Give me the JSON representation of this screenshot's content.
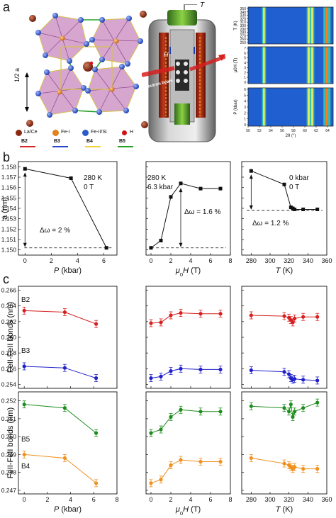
{
  "panel_labels": {
    "a": "a",
    "b": "b",
    "c": "c"
  },
  "panel_a": {
    "structure": {
      "axis_label": "1/2 a",
      "legend": [
        {
          "label": "La/Ce",
          "color": "#8b2a14"
        },
        {
          "label": "Fe-I",
          "color": "#e0831a"
        },
        {
          "label": "Fe-II/Si",
          "color": "#2a5cc8"
        },
        {
          "label": "H",
          "color": "#d0121a"
        }
      ],
      "bond_legend": [
        {
          "label": "B2",
          "color": "#d42a2a"
        },
        {
          "label": "B3",
          "color": "#2747c9"
        },
        {
          "label": "B4",
          "color": "#f0d23a"
        },
        {
          "label": "B5",
          "color": "#28a028"
        }
      ]
    },
    "apparatus": {
      "beam_label": "Neutron beam",
      "top_label": "T",
      "field_label": "H"
    },
    "heatmaps": {
      "y_labels": [
        "T (K)",
        "μ0H (T)",
        "P (kbar)"
      ],
      "y_ticks": [
        [
          "250",
          "260",
          "270",
          "280",
          "290",
          "300",
          "310",
          "320",
          "330",
          "340",
          "350"
        ],
        [
          "0",
          "1",
          "2",
          "3",
          "4",
          "5",
          "6",
          "7"
        ],
        [
          "0",
          "1",
          "2",
          "3",
          "4",
          "5",
          "6"
        ]
      ],
      "x_ticks": [
        "50",
        "52",
        "54",
        "56",
        "58",
        "60",
        "62",
        "64"
      ],
      "x_label": "2θ (°)"
    }
  },
  "chart_data": [
    {
      "type": "line",
      "panel": "b-1",
      "xlabel": "P (kbar)",
      "ylabel": "a (nm)",
      "x": [
        0,
        3.5,
        6.2
      ],
      "y": [
        1.1578,
        1.1569,
        1.1502
      ],
      "xlim": [
        -0.5,
        7
      ],
      "ylim": [
        1.1495,
        1.1585
      ],
      "xticks": [
        "0",
        "2",
        "4",
        "6"
      ],
      "yticks": [
        "1.150",
        "1.151",
        "1.152",
        "1.153",
        "1.154",
        "1.155",
        "1.156",
        "1.157",
        "1.158"
      ],
      "annotations": [
        "280 K",
        "0 T",
        "Δω = 2 %"
      ],
      "baseline": 1.1502
    },
    {
      "type": "line",
      "panel": "b-2",
      "xlabel": "μ0H (T)",
      "ylabel": "",
      "x": [
        0,
        1,
        2,
        3,
        5,
        7
      ],
      "y": [
        1.1502,
        1.1509,
        1.1551,
        1.1564,
        1.1559,
        1.1559
      ],
      "xlim": [
        -0.5,
        8
      ],
      "ylim": [
        1.1495,
        1.1585
      ],
      "xticks": [
        "0",
        "2",
        "4",
        "6",
        "8"
      ],
      "annotations": [
        "280 K",
        "6.3 kbar",
        "Δω = 1.6 %"
      ],
      "baseline": 1.1502
    },
    {
      "type": "line",
      "panel": "b-3",
      "xlabel": "T (K)",
      "ylabel": "",
      "x": [
        280,
        315,
        322,
        324,
        326,
        335,
        350
      ],
      "y": [
        1.1576,
        1.1563,
        1.1541,
        1.154,
        1.1539,
        1.1539,
        1.1539
      ],
      "xlim": [
        270,
        360
      ],
      "ylim": [
        1.1495,
        1.1585
      ],
      "xticks": [
        "280",
        "300",
        "320",
        "340",
        "360"
      ],
      "annotations": [
        "0 kbar",
        "0 T",
        "Δω = 1.2 %"
      ],
      "baseline": 1.1538
    },
    {
      "type": "line",
      "panel": "c-top-1",
      "xlabel": "",
      "ylabel": "FeII-FeII bonds (nm)",
      "ylim": [
        0.2535,
        0.2665
      ],
      "yticks": [
        "0.254",
        "0.256",
        "0.258",
        "0.260",
        "0.262",
        "0.264",
        "0.266"
      ],
      "xlim": [
        -0.5,
        8
      ],
      "series": [
        {
          "name": "B2",
          "color": "#d62020",
          "x": [
            0,
            3.5,
            6.2
          ],
          "y": [
            0.2634,
            0.2632,
            0.2617
          ]
        },
        {
          "name": "B3",
          "color": "#2020c8",
          "x": [
            0,
            3.5,
            6.2
          ],
          "y": [
            0.2563,
            0.2561,
            0.2548
          ]
        }
      ]
    },
    {
      "type": "line",
      "panel": "c-top-2",
      "xlim": [
        -0.5,
        8
      ],
      "ylim": [
        0.2535,
        0.2665
      ],
      "series": [
        {
          "name": "B2",
          "color": "#d62020",
          "x": [
            0,
            1,
            2,
            3,
            5,
            7
          ],
          "y": [
            0.2618,
            0.2619,
            0.2628,
            0.2631,
            0.263,
            0.263
          ]
        },
        {
          "name": "B3",
          "color": "#2020c8",
          "x": [
            0,
            1,
            2,
            3,
            5,
            7
          ],
          "y": [
            0.2548,
            0.255,
            0.2557,
            0.256,
            0.2559,
            0.2559
          ]
        }
      ]
    },
    {
      "type": "line",
      "panel": "c-top-3",
      "xlim": [
        270,
        360
      ],
      "ylim": [
        0.2535,
        0.2665
      ],
      "series": [
        {
          "name": "B2",
          "color": "#d62020",
          "x": [
            280,
            315,
            320,
            322,
            324,
            326,
            335,
            350
          ],
          "y": [
            0.2628,
            0.2627,
            0.2625,
            0.2622,
            0.2619,
            0.2624,
            0.2626,
            0.2626
          ]
        },
        {
          "name": "B3",
          "color": "#2020c8",
          "x": [
            280,
            315,
            320,
            322,
            324,
            326,
            335,
            350
          ],
          "y": [
            0.2558,
            0.2556,
            0.2553,
            0.2548,
            0.2546,
            0.2547,
            0.2546,
            0.2545
          ]
        }
      ]
    },
    {
      "type": "line",
      "panel": "c-bottom-1",
      "xlabel": "P (kbar)",
      "ylabel": "FeII-FeII bonds (nm)",
      "xlim": [
        -0.5,
        8
      ],
      "ylim": [
        0.2468,
        0.2525
      ],
      "xticks": [
        "0",
        "2",
        "4",
        "6",
        "8"
      ],
      "yticks": [
        "0.247",
        "0.248",
        "0.249",
        "0.250",
        "0.251",
        "0.252"
      ],
      "series": [
        {
          "name": "B5",
          "color": "#1e8c1e",
          "x": [
            0,
            3.5,
            6.2
          ],
          "y": [
            0.2518,
            0.2516,
            0.2502
          ]
        },
        {
          "name": "B4",
          "color": "#f0901e",
          "x": [
            0,
            3.5,
            6.2
          ],
          "y": [
            0.249,
            0.2488,
            0.2474
          ]
        }
      ]
    },
    {
      "type": "line",
      "panel": "c-bottom-2",
      "xlabel": "μ0H (T)",
      "xlim": [
        -0.5,
        8
      ],
      "ylim": [
        0.2468,
        0.2525
      ],
      "xticks": [
        "0",
        "2",
        "4",
        "6",
        "8"
      ],
      "series": [
        {
          "name": "B5",
          "color": "#1e8c1e",
          "x": [
            0,
            1,
            2,
            3,
            5,
            7
          ],
          "y": [
            0.2502,
            0.2504,
            0.2511,
            0.2515,
            0.2514,
            0.2514
          ]
        },
        {
          "name": "B4",
          "color": "#f0901e",
          "x": [
            0,
            1,
            2,
            3,
            5,
            7
          ],
          "y": [
            0.2474,
            0.2476,
            0.2484,
            0.2487,
            0.2486,
            0.2486
          ]
        }
      ]
    },
    {
      "type": "line",
      "panel": "c-bottom-3",
      "xlabel": "T (K)",
      "xlim": [
        270,
        360
      ],
      "ylim": [
        0.2468,
        0.2525
      ],
      "xticks": [
        "280",
        "300",
        "320",
        "340",
        "360"
      ],
      "series": [
        {
          "name": "B5",
          "color": "#1e8c1e",
          "x": [
            280,
            315,
            320,
            322,
            324,
            326,
            335,
            350
          ],
          "y": [
            0.2517,
            0.2516,
            0.2514,
            0.2518,
            0.2511,
            0.2514,
            0.2516,
            0.2519
          ]
        },
        {
          "name": "B4",
          "color": "#f0901e",
          "x": [
            280,
            315,
            320,
            322,
            324,
            326,
            335,
            350
          ],
          "y": [
            0.2488,
            0.2485,
            0.2484,
            0.2483,
            0.2482,
            0.2483,
            0.2482,
            0.2482
          ]
        }
      ]
    }
  ]
}
